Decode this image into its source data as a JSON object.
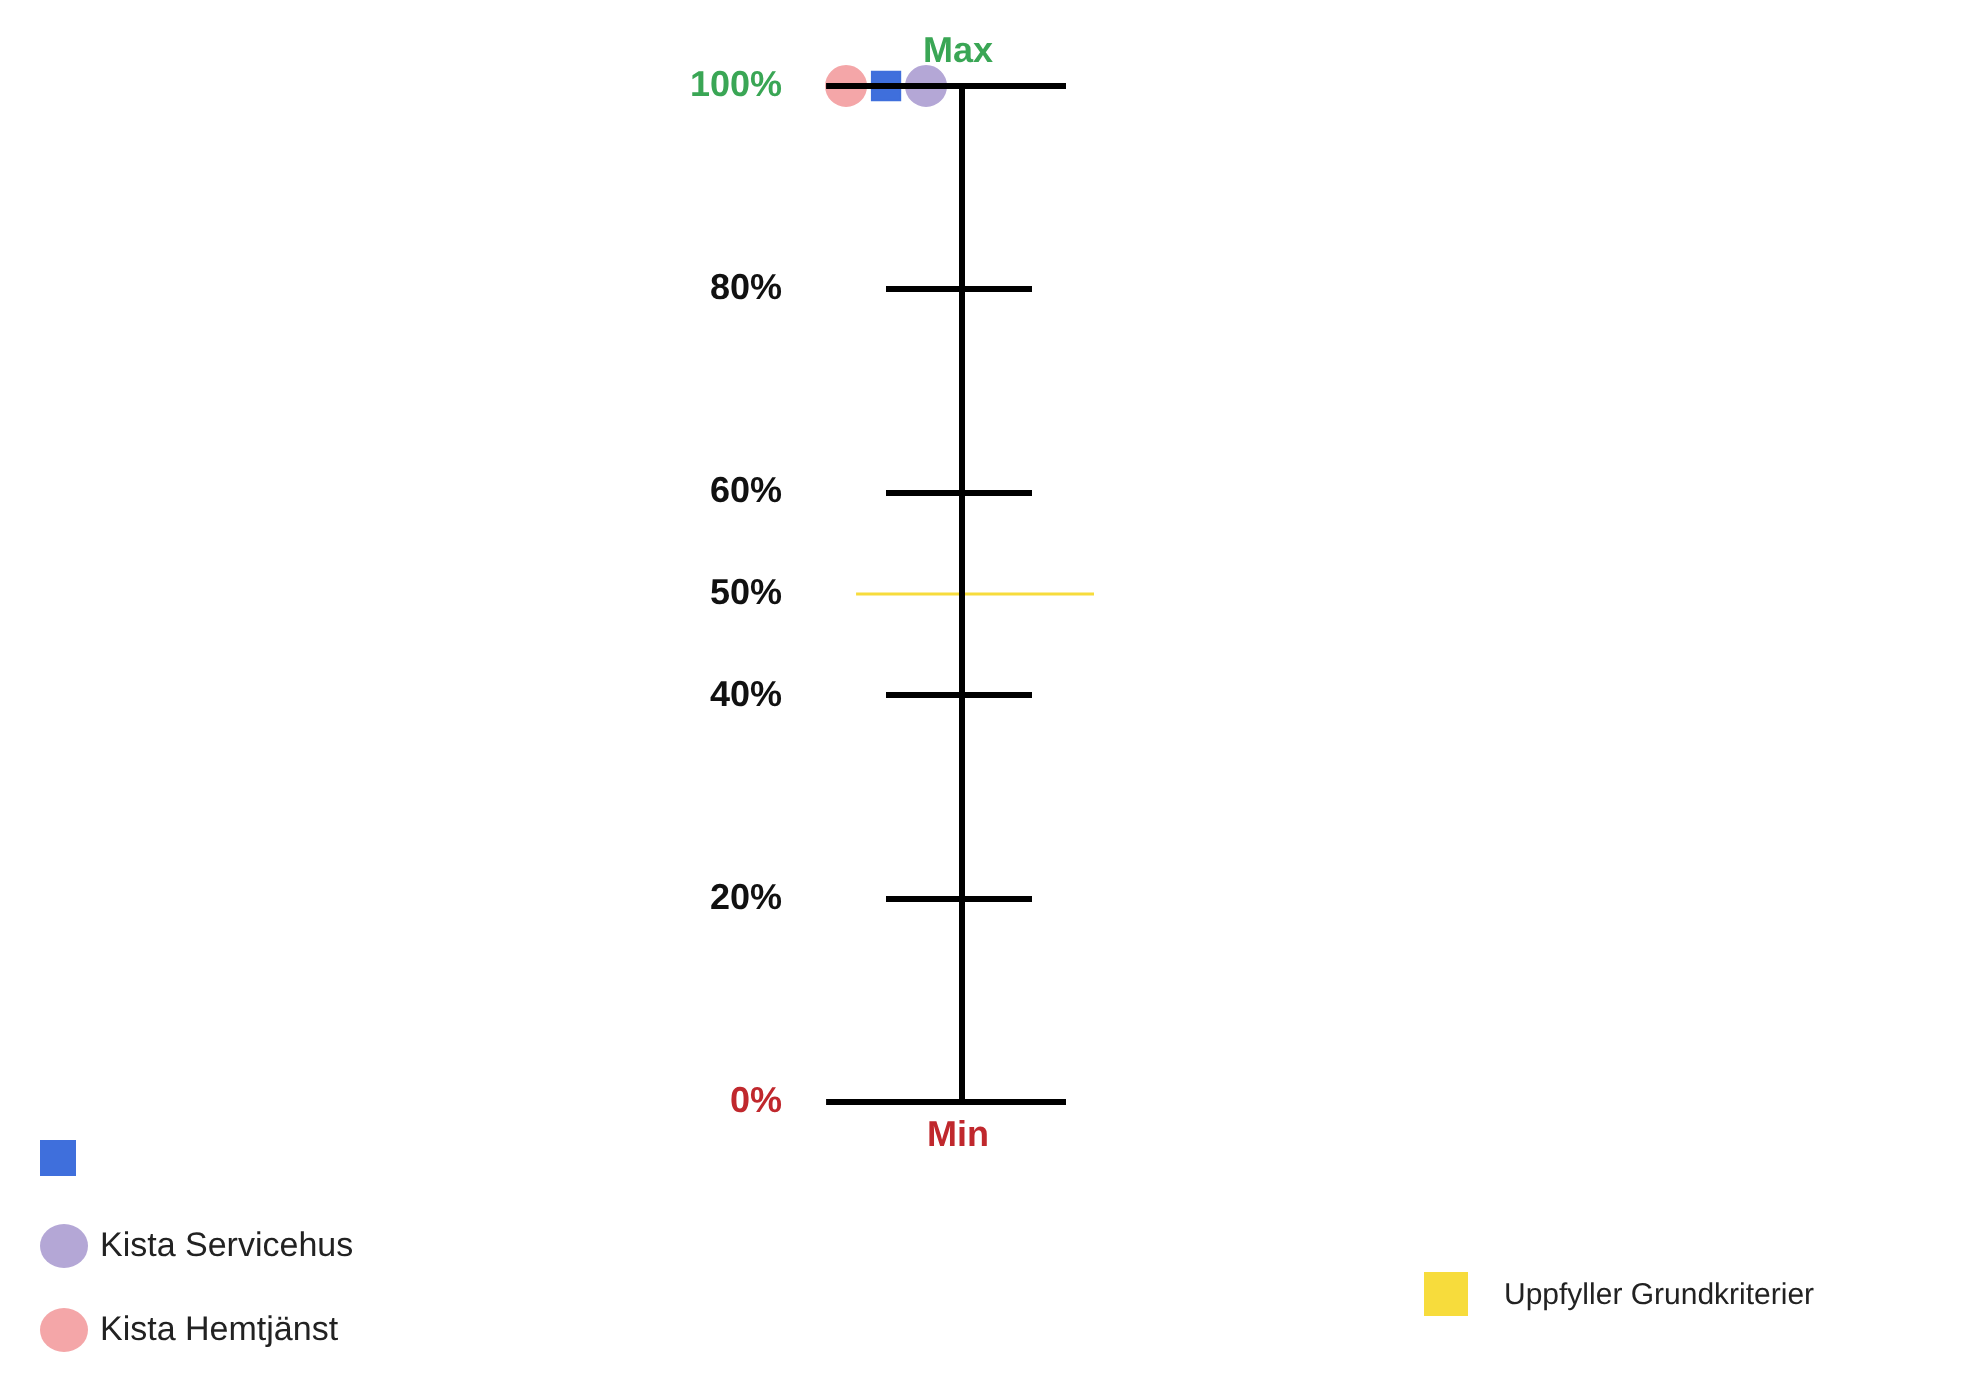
{
  "chart_data": {
    "type": "scatter",
    "categories": [
      null,
      null,
      null,
      null,
      null,
      null
    ],
    "ylim": [
      0,
      100
    ],
    "yticks": [
      {
        "value": 0,
        "label": "0%"
      },
      {
        "value": 20,
        "label": "20%"
      },
      {
        "value": 40,
        "label": "40%"
      },
      {
        "value": 50,
        "label": "50%"
      },
      {
        "value": 60,
        "label": "60%"
      },
      {
        "value": 80,
        "label": "80%"
      },
      {
        "value": 100,
        "label": "100%"
      }
    ],
    "series": [
      {
        "color": "#3f6fdc",
        "marker": "square",
        "values": [
          null,
          100,
          null,
          null,
          null,
          null
        ]
      },
      {
        "name": "Kista Servicehus",
        "color": "#b4a7d6",
        "marker": "circle",
        "values": [
          null,
          null,
          100,
          null,
          null,
          null
        ]
      },
      {
        "name": "Kista Hemtjänst",
        "color": "#f4a6a8",
        "marker": "circle",
        "values": [
          100,
          null,
          null,
          null,
          null,
          null
        ]
      }
    ],
    "ref_lines": [
      {
        "axis": "y",
        "value": 50,
        "label": "Uppfyller Grundkriterier",
        "color": "#f7dc3c"
      }
    ],
    "annotations": [
      "Max",
      "Min"
    ],
    "legend": "bottom left",
    "grid": false
  }
}
